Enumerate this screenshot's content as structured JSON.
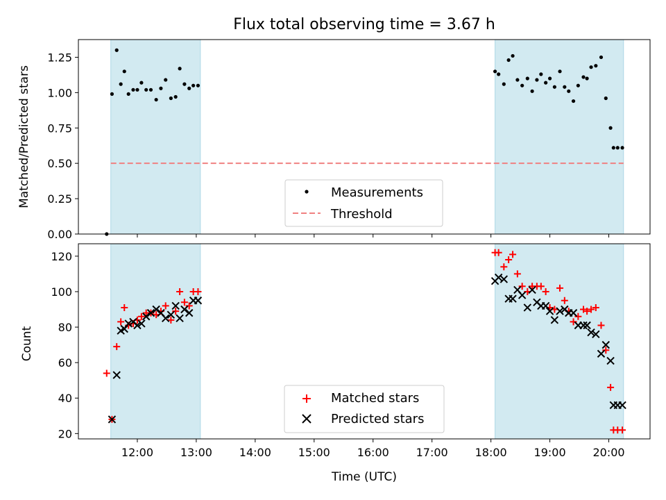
{
  "chart_data": [
    {
      "type": "scatter",
      "title": "Flux total observing time = 3.67 h",
      "xlabel": "",
      "ylabel": "Matched/Predicted stars",
      "xlim": [
        11.0,
        20.7
      ],
      "ylim": [
        0.0,
        1.375
      ],
      "yticks": [
        0.0,
        0.25,
        0.5,
        0.75,
        1.0,
        1.25
      ],
      "ytick_labels": [
        "0.00",
        "0.25",
        "0.50",
        "0.75",
        "1.00",
        "1.25"
      ],
      "shaded_regions": [
        [
          11.55,
          13.07
        ],
        [
          18.07,
          20.25
        ]
      ],
      "shade_color": "#add8e6",
      "threshold": {
        "name": "Threshold",
        "y": 0.5,
        "x_range": [
          11.55,
          20.25
        ],
        "color": "#f08080"
      },
      "series": [
        {
          "name": "Measurements",
          "color": "#000000",
          "x": [
            11.48,
            11.57,
            11.65,
            11.72,
            11.78,
            11.85,
            11.93,
            12.0,
            12.07,
            12.15,
            12.23,
            12.32,
            12.4,
            12.48,
            12.57,
            12.65,
            12.72,
            12.8,
            12.88,
            12.95,
            13.03,
            18.07,
            18.13,
            18.22,
            18.3,
            18.37,
            18.45,
            18.53,
            18.62,
            18.7,
            18.78,
            18.85,
            18.93,
            19.0,
            19.08,
            19.17,
            19.25,
            19.32,
            19.4,
            19.48,
            19.57,
            19.63,
            19.7,
            19.78,
            19.87,
            19.95,
            20.03,
            20.08,
            20.15,
            20.23
          ],
          "y": [
            0.0,
            0.99,
            1.3,
            1.06,
            1.15,
            0.99,
            1.02,
            1.02,
            1.07,
            1.02,
            1.02,
            0.95,
            1.03,
            1.09,
            0.96,
            0.97,
            1.17,
            1.06,
            1.03,
            1.05,
            1.05,
            1.15,
            1.13,
            1.06,
            1.23,
            1.26,
            1.09,
            1.05,
            1.1,
            1.01,
            1.09,
            1.13,
            1.07,
            1.1,
            1.04,
            1.15,
            1.04,
            1.01,
            0.94,
            1.05,
            1.11,
            1.1,
            1.18,
            1.19,
            1.25,
            0.96,
            0.75,
            0.61,
            0.61,
            0.61
          ]
        }
      ],
      "legend": [
        "Measurements",
        "Threshold"
      ],
      "legend_position": "lower-center"
    },
    {
      "type": "scatter",
      "title": "",
      "xlabel": "Time (UTC)",
      "ylabel": "Count",
      "xlim": [
        11.0,
        20.7
      ],
      "ylim": [
        17,
        127
      ],
      "yticks": [
        20,
        40,
        60,
        80,
        100,
        120
      ],
      "xticks": [
        12,
        13,
        14,
        15,
        16,
        17,
        18,
        19,
        20
      ],
      "xtick_labels": [
        "12:00",
        "13:00",
        "14:00",
        "15:00",
        "16:00",
        "17:00",
        "18:00",
        "19:00",
        "20:00"
      ],
      "shaded_regions": [
        [
          11.55,
          13.07
        ],
        [
          18.07,
          20.25
        ]
      ],
      "series": [
        {
          "name": "Matched stars",
          "marker": "plus",
          "color": "#ff0000",
          "x": [
            11.48,
            11.57,
            11.65,
            11.72,
            11.78,
            11.85,
            11.93,
            12.0,
            12.07,
            12.15,
            12.23,
            12.32,
            12.4,
            12.48,
            12.57,
            12.65,
            12.72,
            12.8,
            12.88,
            12.95,
            13.03,
            18.07,
            18.13,
            18.22,
            18.3,
            18.37,
            18.45,
            18.53,
            18.62,
            18.7,
            18.78,
            18.85,
            18.93,
            19.0,
            19.08,
            19.17,
            19.25,
            19.32,
            19.4,
            19.48,
            19.57,
            19.63,
            19.7,
            19.78,
            19.87,
            19.95,
            20.03,
            20.08,
            20.15,
            20.23
          ],
          "y": [
            54,
            28,
            69,
            83,
            91,
            81,
            82,
            84,
            86,
            88,
            88,
            87,
            89,
            92,
            84,
            89,
            100,
            94,
            92,
            100,
            100,
            122,
            122,
            114,
            118,
            121,
            110,
            103,
            100,
            103,
            103,
            103,
            100,
            91,
            90,
            102,
            95,
            89,
            83,
            86,
            90,
            89,
            90,
            91,
            81,
            67,
            46,
            22,
            22,
            22
          ]
        },
        {
          "name": "Predicted stars",
          "marker": "x",
          "color": "#000000",
          "x": [
            11.57,
            11.65,
            11.72,
            11.78,
            11.85,
            11.93,
            12.0,
            12.07,
            12.15,
            12.23,
            12.32,
            12.4,
            12.48,
            12.57,
            12.65,
            12.72,
            12.8,
            12.88,
            12.95,
            13.03,
            18.07,
            18.13,
            18.22,
            18.3,
            18.37,
            18.45,
            18.53,
            18.62,
            18.7,
            18.78,
            18.85,
            18.93,
            19.0,
            19.08,
            19.17,
            19.25,
            19.32,
            19.4,
            19.48,
            19.57,
            19.63,
            19.7,
            19.78,
            19.87,
            19.95,
            20.03,
            20.08,
            20.15,
            20.23
          ],
          "y": [
            28,
            53,
            78,
            79,
            82,
            83,
            81,
            82,
            86,
            88,
            90,
            88,
            85,
            87,
            92,
            85,
            90,
            88,
            95,
            95,
            106,
            108,
            107,
            96,
            96,
            101,
            98,
            91,
            101,
            94,
            92,
            92,
            89,
            84,
            89,
            90,
            88,
            88,
            81,
            81,
            81,
            77,
            76,
            65,
            70,
            61,
            36,
            36,
            36
          ]
        }
      ],
      "legend": [
        "Matched stars",
        "Predicted stars"
      ],
      "legend_position": "lower-center"
    }
  ]
}
